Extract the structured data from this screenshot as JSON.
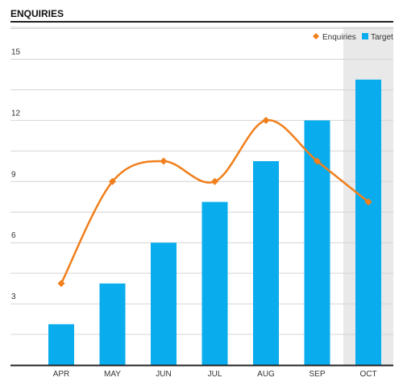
{
  "page": {
    "title": "ENQUIRIES"
  },
  "colors": {
    "target": "#09acec",
    "enquiries": "#f07f1c",
    "highlight": "#e9e9e9",
    "grid": "#d4d4d4",
    "axis": "#222222"
  },
  "chart_data": {
    "type": "bar",
    "title": "ENQUIRIES",
    "xlabel": "",
    "ylabel": "",
    "categories": [
      "APR",
      "MAY",
      "JUN",
      "JUL",
      "AUG",
      "SEP",
      "OCT"
    ],
    "ylim": [
      0,
      16
    ],
    "yticks": [
      3,
      6,
      9,
      12,
      15
    ],
    "grid": true,
    "legend": "top-right",
    "highlighted_category": "OCT",
    "series": [
      {
        "name": "Enquiries",
        "type": "line",
        "smooth": true,
        "values": [
          4,
          9,
          10,
          9,
          12,
          10,
          8
        ]
      },
      {
        "name": "Target",
        "type": "bar",
        "values": [
          2,
          4,
          6,
          8,
          10,
          12,
          14
        ]
      }
    ]
  }
}
